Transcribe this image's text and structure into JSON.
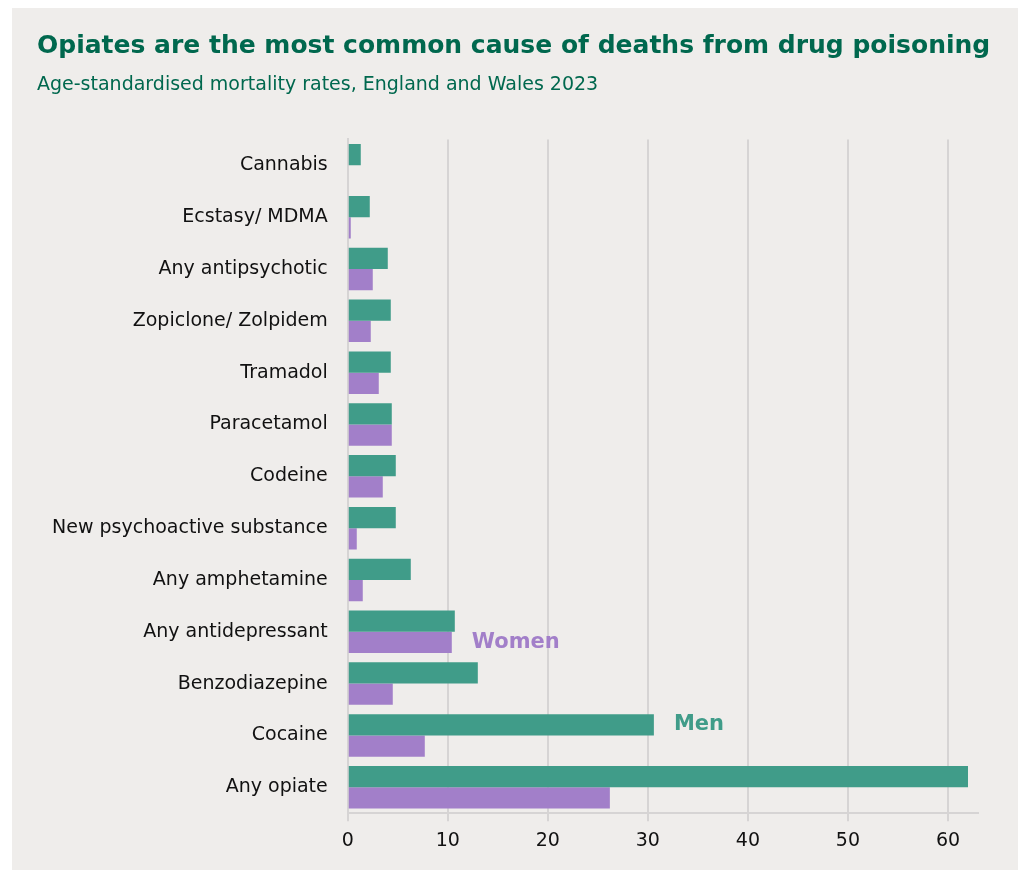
{
  "chart_data": {
    "type": "bar",
    "orientation": "horizontal",
    "title": "Opiates are the most common cause of deaths from drug poisoning",
    "subtitle": "Age-standardised mortality rates, England and Wales 2023",
    "categories": [
      "Cannabis",
      "Ecstasy/ MDMA",
      "Any antipsychotic",
      "Zopiclone/ Zolpidem",
      "Tramadol",
      "Paracetamol",
      "Codeine",
      "New psychoactive substance",
      "Any amphetamine",
      "Any antidepressant",
      "Benzodiazepine",
      "Cocaine",
      "Any opiate"
    ],
    "series": [
      {
        "name": "Men",
        "color": "#409c89",
        "values": [
          1.3,
          2.2,
          4.0,
          4.3,
          4.3,
          4.4,
          4.8,
          4.8,
          6.3,
          10.7,
          13.0,
          30.6,
          62.0
        ]
      },
      {
        "name": "Women",
        "color": "#a27fc9",
        "values": [
          null,
          0.3,
          2.5,
          2.3,
          3.1,
          4.4,
          3.5,
          0.9,
          1.5,
          10.4,
          4.5,
          7.7,
          26.2
        ]
      }
    ],
    "xlim": [
      0,
      63
    ],
    "xticks": [
      0,
      10,
      20,
      30,
      40,
      50,
      60
    ],
    "grid": "x",
    "legend": false
  }
}
